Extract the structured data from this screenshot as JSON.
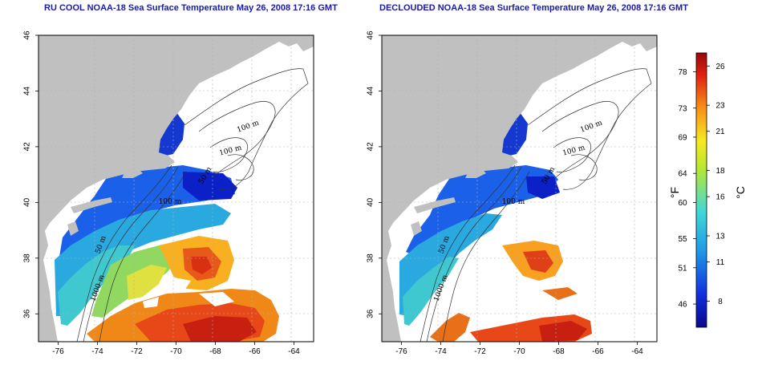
{
  "panels": [
    {
      "title": "RU COOL NOAA-18 Sea Surface Temperature May 26, 2008 17:16 GMT",
      "x_ticks": [
        "-76",
        "-74",
        "-72",
        "-70",
        "-68",
        "-66",
        "-64"
      ],
      "y_ticks": [
        "36",
        "38",
        "40",
        "42",
        "44",
        "46"
      ],
      "contour_labels": [
        "100 m",
        "100 m",
        "50 m",
        "100 m",
        "50 m",
        "1000 m"
      ]
    },
    {
      "title": "DECLOUDED NOAA-18 Sea Surface Temperature May 26, 2008 17:16 GMT",
      "x_ticks": [
        "-76",
        "-74",
        "-72",
        "-70",
        "-68",
        "-66",
        "-64"
      ],
      "y_ticks": [
        "36",
        "38",
        "40",
        "42",
        "44",
        "46"
      ],
      "contour_labels": [
        "100 m",
        "100 m",
        "50 m",
        "100 m",
        "50 m",
        "1000 m"
      ]
    }
  ],
  "colorbar": {
    "fahrenheit_label": "°F",
    "celsius_label": "°C",
    "fahrenheit_ticks": [
      "78",
      "73",
      "69",
      "64",
      "60",
      "55",
      "51",
      "46"
    ],
    "celsius_ticks": [
      "26",
      "23",
      "21",
      "18",
      "16",
      "13",
      "11",
      "8"
    ],
    "colors": [
      "#08088c",
      "#1030e0",
      "#1f9ae8",
      "#3fd8d8",
      "#b8e830",
      "#f8e820",
      "#f89018",
      "#e02010",
      "#9a0808"
    ]
  },
  "map_extent": {
    "lon_range": [
      -77,
      -63
    ],
    "lat_range": [
      35,
      46
    ]
  },
  "colors": {
    "land": "#c0c0c0",
    "title": "#1a1aa8",
    "grid": "#b0b0b0"
  }
}
